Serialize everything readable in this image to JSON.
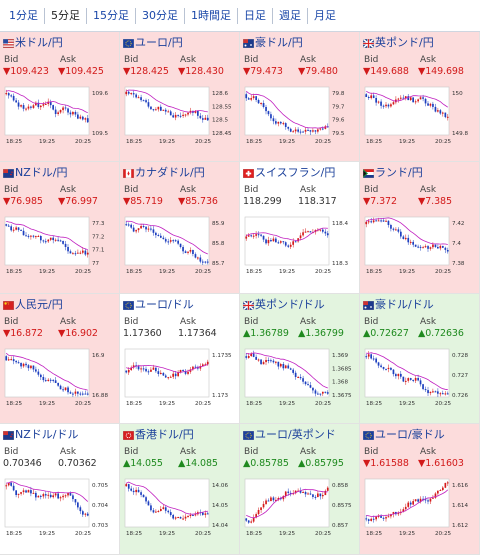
{
  "tabs": [
    "1分足",
    "5分足",
    "15分足",
    "30分足",
    "1時間足",
    "日足",
    "週足",
    "月足"
  ],
  "active_tab": 1,
  "labels": {
    "bid": "Bid",
    "ask": "Ask"
  },
  "colors": {
    "down_bg": "#fcdcdc",
    "up_bg": "#e3f4df",
    "down": "#d21a1a",
    "up": "#1f8a1f",
    "ma": "#c020c0"
  },
  "x_ticks": [
    "18:25",
    "19:25",
    "20:25"
  ],
  "pairs": [
    {
      "name": "米ドル/円",
      "flag": "us",
      "dir": "down",
      "bid": "▼109.423",
      "ask": "▼109.425",
      "yticks": [
        "109.6",
        "109.5"
      ],
      "trend": "down"
    },
    {
      "name": "ユーロ/円",
      "flag": "eu",
      "dir": "down",
      "bid": "▼128.425",
      "ask": "▼128.430",
      "yticks": [
        "128.6",
        "128.55",
        "128.5",
        "128.45"
      ],
      "trend": "down"
    },
    {
      "name": "豪ドル/円",
      "flag": "au",
      "dir": "down",
      "bid": "▼79.473",
      "ask": "▼79.480",
      "yticks": [
        "79.8",
        "79.7",
        "79.6",
        "79.5"
      ],
      "trend": "down"
    },
    {
      "name": "英ポンド/円",
      "flag": "gb",
      "dir": "down",
      "bid": "▼149.688",
      "ask": "▼149.698",
      "yticks": [
        "150",
        "149.8"
      ],
      "trend": "down"
    },
    {
      "name": "NZドル/円",
      "flag": "nz",
      "dir": "down",
      "bid": "▼76.985",
      "ask": "▼76.997",
      "yticks": [
        "77.3",
        "77.2",
        "77.1",
        "77"
      ],
      "trend": "down"
    },
    {
      "name": "カナダドル/円",
      "flag": "ca",
      "dir": "down",
      "bid": "▼85.719",
      "ask": "▼85.736",
      "yticks": [
        "85.9",
        "85.8",
        "85.7"
      ],
      "trend": "down"
    },
    {
      "name": "スイスフラン/円",
      "flag": "ch",
      "dir": "flat",
      "bid": "118.299",
      "ask": "118.317",
      "yticks": [
        "118.4",
        "118.3"
      ],
      "trend": "flat"
    },
    {
      "name": "ランド/円",
      "flag": "za",
      "dir": "down",
      "bid": "▼7.372",
      "ask": "▼7.385",
      "yticks": [
        "7.42",
        "7.4",
        "7.38"
      ],
      "trend": "down"
    },
    {
      "name": "人民元/円",
      "flag": "cn",
      "dir": "down",
      "bid": "▼16.872",
      "ask": "▼16.902",
      "yticks": [
        "16.9",
        "16.88"
      ],
      "trend": "down"
    },
    {
      "name": "ユーロ/ドル",
      "flag": "eu",
      "dir": "flat",
      "bid": "1.17360",
      "ask": "1.17364",
      "yticks": [
        "1.1735",
        "1.173"
      ],
      "trend": "flat"
    },
    {
      "name": "英ポンド/ドル",
      "flag": "gb",
      "dir": "up",
      "bid": "▲1.36789",
      "ask": "▲1.36799",
      "yticks": [
        "1.369",
        "1.3685",
        "1.368",
        "1.3675"
      ],
      "trend": "down"
    },
    {
      "name": "豪ドル/ドル",
      "flag": "au",
      "dir": "up",
      "bid": "▲0.72627",
      "ask": "▲0.72636",
      "yticks": [
        "0.728",
        "0.727",
        "0.726"
      ],
      "trend": "down"
    },
    {
      "name": "NZドル/ドル",
      "flag": "nz",
      "dir": "flat",
      "bid": "0.70346",
      "ask": "0.70362",
      "yticks": [
        "0.705",
        "0.704",
        "0.703"
      ],
      "trend": "down"
    },
    {
      "name": "香港ドル/円",
      "flag": "hk",
      "dir": "up",
      "bid": "▲14.055",
      "ask": "▲14.085",
      "yticks": [
        "14.06",
        "14.05",
        "14.04"
      ],
      "trend": "down"
    },
    {
      "name": "ユーロ/英ポンド",
      "flag": "eu",
      "dir": "up",
      "bid": "▲0.85785",
      "ask": "▲0.85795",
      "yticks": [
        "0.858",
        "0.8575",
        "0.857"
      ],
      "trend": "up"
    },
    {
      "name": "ユーロ/豪ドル",
      "flag": "eu",
      "dir": "down",
      "bid": "▼1.61588",
      "ask": "▼1.61603",
      "yticks": [
        "1.616",
        "1.614",
        "1.612"
      ],
      "trend": "up"
    }
  ]
}
